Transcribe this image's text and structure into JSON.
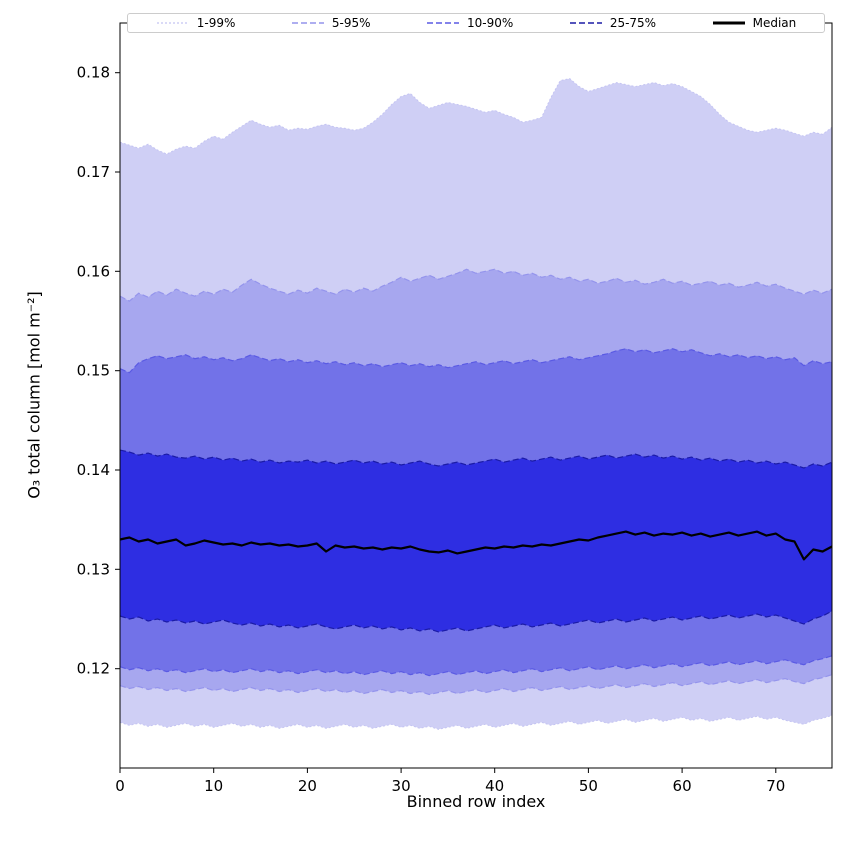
{
  "figure": {
    "background": "#ffffff"
  },
  "legend": {
    "entries": [
      {
        "id": "1-99",
        "label": "1-99%",
        "color": "#c4c4f2",
        "dash": "2 2",
        "width": 1.2
      },
      {
        "id": "5-95",
        "label": "5-95%",
        "color": "#9494ec",
        "dash": "6 3",
        "width": 1.4
      },
      {
        "id": "10-90",
        "label": "10-90%",
        "color": "#5a5ae3",
        "dash": "6 3",
        "width": 1.4
      },
      {
        "id": "25-75",
        "label": "25-75%",
        "color": "#1b1ba6",
        "dash": "6 3",
        "width": 1.6
      },
      {
        "id": "median",
        "label": "Median",
        "color": "#000000",
        "dash": "",
        "width": 3
      }
    ]
  },
  "chart_data": {
    "type": "area",
    "subtype": "percentile-fan",
    "title": "",
    "xlabel": "Binned row index",
    "ylabel": "O₃ total column [mol m⁻²]",
    "xlim": [
      0,
      76
    ],
    "ylim": [
      0.11,
      0.185
    ],
    "xticks": [
      0,
      10,
      20,
      30,
      40,
      50,
      60,
      70
    ],
    "xtick_labels": [
      "0",
      "10",
      "20",
      "30",
      "40",
      "50",
      "60",
      "70"
    ],
    "yticks": [
      0.12,
      0.13,
      0.14,
      0.15,
      0.16,
      0.17,
      0.18
    ],
    "ytick_labels": [
      "0.12",
      "0.13",
      "0.14",
      "0.15",
      "0.16",
      "0.17",
      "0.18"
    ],
    "grid": false,
    "legend_position": "top-expanded",
    "x": [
      0,
      1,
      2,
      3,
      4,
      5,
      6,
      7,
      8,
      9,
      10,
      11,
      12,
      13,
      14,
      15,
      16,
      17,
      18,
      19,
      20,
      21,
      22,
      23,
      24,
      25,
      26,
      27,
      28,
      29,
      30,
      31,
      32,
      33,
      34,
      35,
      36,
      37,
      38,
      39,
      40,
      41,
      42,
      43,
      44,
      45,
      46,
      47,
      48,
      49,
      50,
      51,
      52,
      53,
      54,
      55,
      56,
      57,
      58,
      59,
      60,
      61,
      62,
      63,
      64,
      65,
      66,
      67,
      68,
      69,
      70,
      71,
      72,
      73,
      74,
      75,
      76
    ],
    "bands": [
      {
        "id": "1-99",
        "name": "1-99%",
        "fill": "#cfcff5",
        "edge": "#c4c4f2",
        "edge_width": 1.0,
        "dash": "2 2",
        "lo": [
          0.1146,
          0.1143,
          0.1145,
          0.1142,
          0.1144,
          0.1141,
          0.1143,
          0.1145,
          0.1142,
          0.1144,
          0.1141,
          0.1143,
          0.1145,
          0.1142,
          0.1144,
          0.1141,
          0.1143,
          0.114,
          0.1142,
          0.1144,
          0.1141,
          0.1143,
          0.114,
          0.1142,
          0.1144,
          0.1141,
          0.1143,
          0.114,
          0.1142,
          0.1144,
          0.1141,
          0.1143,
          0.114,
          0.1142,
          0.1139,
          0.1141,
          0.1143,
          0.114,
          0.1142,
          0.1144,
          0.1141,
          0.1143,
          0.1145,
          0.1142,
          0.1144,
          0.1146,
          0.1143,
          0.1145,
          0.1147,
          0.1144,
          0.1146,
          0.1148,
          0.1145,
          0.1147,
          0.1149,
          0.1146,
          0.1148,
          0.115,
          0.1147,
          0.1149,
          0.1151,
          0.1148,
          0.115,
          0.1147,
          0.1149,
          0.1151,
          0.1148,
          0.115,
          0.1152,
          0.1149,
          0.1151,
          0.1148,
          0.1146,
          0.1144,
          0.1148,
          0.115,
          0.1153
        ],
        "hi": [
          0.173,
          0.1727,
          0.1724,
          0.1728,
          0.1722,
          0.1718,
          0.1723,
          0.1726,
          0.1724,
          0.1731,
          0.1736,
          0.1733,
          0.174,
          0.1746,
          0.1752,
          0.1748,
          0.1745,
          0.1747,
          0.1742,
          0.1744,
          0.1743,
          0.1746,
          0.1748,
          0.1745,
          0.1744,
          0.1742,
          0.1744,
          0.175,
          0.1758,
          0.1768,
          0.1776,
          0.1779,
          0.177,
          0.1764,
          0.1767,
          0.177,
          0.1768,
          0.1766,
          0.1763,
          0.176,
          0.1762,
          0.1758,
          0.1755,
          0.175,
          0.1752,
          0.1755,
          0.1775,
          0.1792,
          0.1794,
          0.1786,
          0.1781,
          0.1784,
          0.1787,
          0.179,
          0.1788,
          0.1786,
          0.1788,
          0.179,
          0.1787,
          0.1789,
          0.1786,
          0.1781,
          0.1776,
          0.1768,
          0.1758,
          0.175,
          0.1746,
          0.1742,
          0.174,
          0.1742,
          0.1744,
          0.1742,
          0.1739,
          0.1736,
          0.174,
          0.1738,
          0.1745
        ]
      },
      {
        "id": "5-95",
        "name": "5-95%",
        "fill": "#a7a7ef",
        "edge": "#9494ec",
        "edge_width": 1.2,
        "dash": "6 3",
        "lo": [
          0.1183,
          0.118,
          0.1182,
          0.1179,
          0.1181,
          0.1178,
          0.118,
          0.1177,
          0.1179,
          0.1181,
          0.1178,
          0.118,
          0.1177,
          0.1179,
          0.1181,
          0.1178,
          0.118,
          0.1177,
          0.1179,
          0.1176,
          0.1178,
          0.118,
          0.1177,
          0.1179,
          0.1176,
          0.1178,
          0.1175,
          0.1177,
          0.1179,
          0.1176,
          0.1178,
          0.1175,
          0.1177,
          0.1174,
          0.1176,
          0.1178,
          0.1175,
          0.1177,
          0.1179,
          0.1176,
          0.1178,
          0.118,
          0.1177,
          0.1179,
          0.1181,
          0.1178,
          0.118,
          0.1182,
          0.1179,
          0.1181,
          0.1183,
          0.118,
          0.1182,
          0.1184,
          0.1181,
          0.1183,
          0.1185,
          0.1182,
          0.1184,
          0.1186,
          0.1183,
          0.1185,
          0.1187,
          0.1184,
          0.1186,
          0.1188,
          0.1185,
          0.1187,
          0.1189,
          0.1186,
          0.1188,
          0.119,
          0.1187,
          0.1185,
          0.1189,
          0.1191,
          0.1194
        ],
        "hi": [
          0.1575,
          0.157,
          0.1578,
          0.1574,
          0.158,
          0.1576,
          0.1582,
          0.1578,
          0.1575,
          0.158,
          0.1577,
          0.1582,
          0.1579,
          0.1586,
          0.1592,
          0.1587,
          0.1583,
          0.158,
          0.1577,
          0.1581,
          0.1578,
          0.1583,
          0.158,
          0.1577,
          0.1582,
          0.1579,
          0.1583,
          0.158,
          0.1585,
          0.1589,
          0.1594,
          0.159,
          0.1593,
          0.1596,
          0.1592,
          0.1595,
          0.1598,
          0.1602,
          0.1598,
          0.16,
          0.1602,
          0.1598,
          0.16,
          0.1596,
          0.1598,
          0.1594,
          0.1596,
          0.1592,
          0.1594,
          0.159,
          0.1592,
          0.1588,
          0.159,
          0.1593,
          0.1589,
          0.1591,
          0.1587,
          0.1589,
          0.1592,
          0.1588,
          0.159,
          0.1586,
          0.1588,
          0.159,
          0.1586,
          0.1588,
          0.1584,
          0.1586,
          0.1589,
          0.1585,
          0.1587,
          0.1583,
          0.158,
          0.1577,
          0.1581,
          0.1578,
          0.1582
        ]
      },
      {
        "id": "10-90",
        "name": "10-90%",
        "fill": "#7272e8",
        "edge": "#5a5ae3",
        "edge_width": 1.2,
        "dash": "6 3",
        "lo": [
          0.1202,
          0.1199,
          0.1201,
          0.1198,
          0.12,
          0.1197,
          0.1199,
          0.1196,
          0.1198,
          0.12,
          0.1197,
          0.1199,
          0.1196,
          0.1198,
          0.12,
          0.1197,
          0.1199,
          0.1196,
          0.1198,
          0.1195,
          0.1197,
          0.1199,
          0.1196,
          0.1198,
          0.1195,
          0.1197,
          0.1194,
          0.1196,
          0.1198,
          0.1195,
          0.1197,
          0.1194,
          0.1196,
          0.1193,
          0.1195,
          0.1197,
          0.1194,
          0.1196,
          0.1198,
          0.1195,
          0.1197,
          0.1199,
          0.1196,
          0.1198,
          0.12,
          0.1197,
          0.1199,
          0.1201,
          0.1198,
          0.12,
          0.1202,
          0.1199,
          0.1201,
          0.1203,
          0.12,
          0.1202,
          0.1204,
          0.1201,
          0.1203,
          0.1205,
          0.1202,
          0.1204,
          0.1206,
          0.1203,
          0.1205,
          0.1207,
          0.1204,
          0.1206,
          0.1208,
          0.1205,
          0.1207,
          0.1209,
          0.1206,
          0.1204,
          0.1208,
          0.121,
          0.1213
        ],
        "hi": [
          0.1502,
          0.1498,
          0.1508,
          0.1512,
          0.1515,
          0.1512,
          0.1514,
          0.1516,
          0.1512,
          0.1514,
          0.1511,
          0.1513,
          0.151,
          0.1512,
          0.1516,
          0.1513,
          0.151,
          0.1512,
          0.1509,
          0.1511,
          0.1508,
          0.151,
          0.1507,
          0.1509,
          0.1506,
          0.1508,
          0.1505,
          0.1507,
          0.1504,
          0.1506,
          0.1508,
          0.1505,
          0.1507,
          0.1504,
          0.1506,
          0.1503,
          0.1505,
          0.1507,
          0.1509,
          0.1506,
          0.1508,
          0.151,
          0.1507,
          0.1509,
          0.1511,
          0.1508,
          0.151,
          0.1512,
          0.1514,
          0.1511,
          0.1513,
          0.1515,
          0.1517,
          0.152,
          0.1522,
          0.1519,
          0.1521,
          0.1518,
          0.152,
          0.1522,
          0.1519,
          0.1521,
          0.1518,
          0.1515,
          0.1517,
          0.1514,
          0.1516,
          0.1513,
          0.1515,
          0.1512,
          0.1514,
          0.1511,
          0.1513,
          0.1505,
          0.151,
          0.1507,
          0.1509
        ]
      },
      {
        "id": "25-75",
        "name": "25-75%",
        "fill": "#2e2ee2",
        "edge": "#1b1ba6",
        "edge_width": 1.2,
        "dash": "6 3",
        "lo": [
          0.1253,
          0.125,
          0.1252,
          0.1248,
          0.125,
          0.1247,
          0.1249,
          0.1246,
          0.1248,
          0.1245,
          0.1247,
          0.1249,
          0.1246,
          0.1244,
          0.1246,
          0.1243,
          0.1245,
          0.1242,
          0.1244,
          0.1241,
          0.1243,
          0.1245,
          0.1242,
          0.124,
          0.1242,
          0.1244,
          0.1241,
          0.1243,
          0.124,
          0.1242,
          0.1239,
          0.1241,
          0.1238,
          0.124,
          0.1237,
          0.1239,
          0.1241,
          0.1238,
          0.124,
          0.1242,
          0.1244,
          0.1241,
          0.1243,
          0.1245,
          0.1242,
          0.1244,
          0.1246,
          0.1243,
          0.1245,
          0.1247,
          0.1249,
          0.1246,
          0.1248,
          0.125,
          0.1247,
          0.1249,
          0.1251,
          0.1248,
          0.125,
          0.1252,
          0.1249,
          0.1251,
          0.1253,
          0.125,
          0.1252,
          0.1254,
          0.1251,
          0.1253,
          0.1255,
          0.1252,
          0.1254,
          0.1251,
          0.1248,
          0.1245,
          0.125,
          0.1253,
          0.1258
        ],
        "hi": [
          0.142,
          0.1418,
          0.1415,
          0.1417,
          0.1414,
          0.1416,
          0.1413,
          0.1412,
          0.1414,
          0.1411,
          0.1413,
          0.141,
          0.1412,
          0.1409,
          0.1411,
          0.1408,
          0.141,
          0.1407,
          0.1409,
          0.1408,
          0.141,
          0.1407,
          0.1409,
          0.1406,
          0.1408,
          0.141,
          0.1407,
          0.1409,
          0.1406,
          0.1408,
          0.1405,
          0.1407,
          0.1409,
          0.1406,
          0.1404,
          0.1406,
          0.1408,
          0.1405,
          0.1407,
          0.1409,
          0.1411,
          0.1408,
          0.141,
          0.1412,
          0.1409,
          0.1411,
          0.1413,
          0.141,
          0.1412,
          0.1414,
          0.1411,
          0.1413,
          0.1415,
          0.1412,
          0.1414,
          0.1416,
          0.1413,
          0.1415,
          0.1412,
          0.1414,
          0.1411,
          0.1413,
          0.141,
          0.1412,
          0.1409,
          0.1411,
          0.1408,
          0.141,
          0.1407,
          0.1409,
          0.1406,
          0.1408,
          0.1405,
          0.1402,
          0.1406,
          0.1404,
          0.1408
        ]
      }
    ],
    "median": {
      "name": "Median",
      "color": "#000000",
      "width": 2.2,
      "values": [
        0.133,
        0.1332,
        0.1328,
        0.133,
        0.1326,
        0.1328,
        0.133,
        0.1324,
        0.1326,
        0.1329,
        0.1327,
        0.1325,
        0.1326,
        0.1324,
        0.1327,
        0.1325,
        0.1326,
        0.1324,
        0.1325,
        0.1323,
        0.1324,
        0.1326,
        0.1318,
        0.1324,
        0.1322,
        0.1323,
        0.1321,
        0.1322,
        0.132,
        0.1322,
        0.1321,
        0.1323,
        0.132,
        0.1318,
        0.1317,
        0.1319,
        0.1316,
        0.1318,
        0.132,
        0.1322,
        0.1321,
        0.1323,
        0.1322,
        0.1324,
        0.1323,
        0.1325,
        0.1324,
        0.1326,
        0.1328,
        0.133,
        0.1329,
        0.1332,
        0.1334,
        0.1336,
        0.1338,
        0.1335,
        0.1337,
        0.1334,
        0.1336,
        0.1335,
        0.1337,
        0.1334,
        0.1336,
        0.1333,
        0.1335,
        0.1337,
        0.1334,
        0.1336,
        0.1338,
        0.1334,
        0.1336,
        0.133,
        0.1328,
        0.131,
        0.132,
        0.1318,
        0.1323
      ]
    }
  }
}
